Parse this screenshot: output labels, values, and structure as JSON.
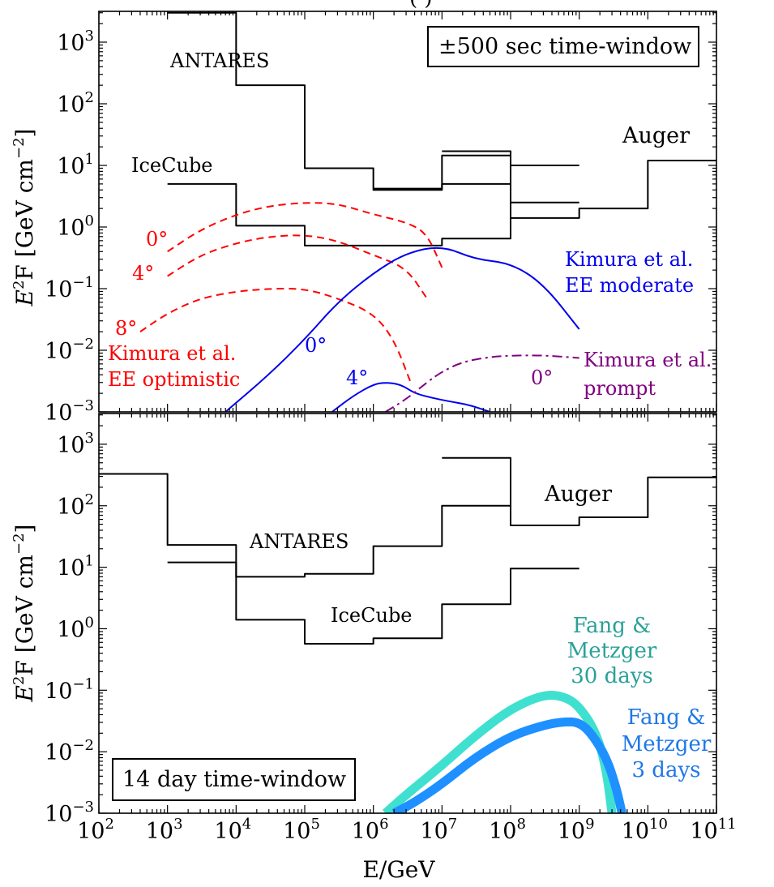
{
  "chart_data": [
    {
      "type": "line",
      "panel": "top",
      "ylabel_main": "E",
      "ylabel_sup": "2",
      "ylabel_rest": "F  [GeV cm",
      "ylabel_unit_sup": "−2",
      "ylabel_close": "]",
      "xscale": "log",
      "yscale": "log",
      "xlim": [
        100,
        100000000000
      ],
      "ylim": [
        0.001,
        3000
      ],
      "box_label": "±500 sec time-window",
      "series": [
        {
          "name": "ANTARES",
          "color": "#000000",
          "style": "step",
          "x": [
            1000,
            10000,
            100000,
            1000000,
            10000000,
            100000000
          ],
          "y": [
            3000,
            200,
            9,
            4,
            5,
            15
          ],
          "x_end": 100000000
        },
        {
          "name": "IceCube",
          "color": "#000000",
          "style": "step",
          "x": [
            1000,
            10000,
            100000,
            1000000,
            10000000,
            100000000
          ],
          "y": [
            5,
            1.05,
            0.5,
            0.5,
            0.65,
            2.5
          ],
          "x_end": 1000000000
        },
        {
          "name": "IceCube upper",
          "color": "#000000",
          "style": "step",
          "x": [
            1000000,
            10000000
          ],
          "y": [
            4.2,
            14.5
          ],
          "x_end": 100000000
        },
        {
          "name": "Auger",
          "color": "#000000",
          "style": "step",
          "x": [
            10000000,
            100000000,
            1000000000,
            10000000000
          ],
          "y": [
            17,
            1.4,
            2,
            12
          ],
          "x_end": 100000000000
        },
        {
          "name": "Auger cap",
          "color": "#000000",
          "style": "step",
          "x": [
            100000000
          ],
          "y": [
            10
          ],
          "x_end": 1000000000
        },
        {
          "name": "Kimura et al. EE optimistic 0°",
          "color": "#ff0000",
          "style": "dashed",
          "x": [
            1000,
            3000,
            10000,
            30000,
            100000,
            300000,
            1000000,
            3000000,
            6000000,
            10000000
          ],
          "y": [
            0.4,
            0.9,
            1.6,
            2.2,
            2.5,
            2.4,
            1.6,
            1.2,
            0.8,
            0.22
          ]
        },
        {
          "name": "Kimura et al. EE optimistic 4°",
          "color": "#ff0000",
          "style": "dashed",
          "x": [
            1000,
            3000,
            10000,
            30000,
            100000,
            300000,
            1000000,
            3000000,
            6000000
          ],
          "y": [
            0.16,
            0.35,
            0.55,
            0.7,
            0.75,
            0.6,
            0.35,
            0.22,
            0.07
          ]
        },
        {
          "name": "Kimura et al. EE optimistic 8°",
          "color": "#ff0000",
          "style": "dashed",
          "x": [
            400,
            1000,
            3000,
            10000,
            30000,
            100000,
            300000,
            1000000,
            2000000,
            3500000
          ],
          "y": [
            0.02,
            0.04,
            0.07,
            0.09,
            0.1,
            0.1,
            0.07,
            0.04,
            0.015,
            0.003
          ]
        },
        {
          "name": "Kimura et al. EE moderate 0°",
          "color": "#0000ee",
          "style": "solid",
          "x": [
            7000,
            30000,
            100000,
            300000,
            1000000,
            3000000,
            10000000,
            30000000,
            100000000,
            300000000,
            1000000000
          ],
          "y": [
            0.001,
            0.004,
            0.015,
            0.06,
            0.18,
            0.38,
            0.5,
            0.3,
            0.26,
            0.12,
            0.022
          ]
        },
        {
          "name": "Kimura et al. EE moderate 4°",
          "color": "#0000ee",
          "style": "solid",
          "x": [
            250000,
            500000,
            1000000,
            1500000,
            2500000,
            4000000,
            7000000,
            12000000,
            25000000,
            50000000
          ],
          "y": [
            0.001,
            0.0018,
            0.0028,
            0.003,
            0.0028,
            0.002,
            0.0017,
            0.0015,
            0.0013,
            0.001
          ]
        },
        {
          "name": "Kimura et al. prompt 0°",
          "color": "#800080",
          "style": "dashdot",
          "x": [
            1500000,
            3000000,
            6000000,
            10000000,
            20000000,
            50000000,
            100000000,
            300000000,
            1000000000
          ],
          "y": [
            0.001,
            0.0016,
            0.003,
            0.0045,
            0.0065,
            0.0078,
            0.0082,
            0.0083,
            0.0075
          ]
        }
      ],
      "labels": {
        "antares": "ANTARES",
        "icecube": "IceCube",
        "auger": "Auger",
        "red_0": "0°",
        "red_4": "4°",
        "red_8": "8°",
        "red_name1": "Kimura et al.",
        "red_name2": "EE optimistic",
        "blue_name1": "Kimura et al.",
        "blue_name2": "EE moderate",
        "blue_0": "0°",
        "blue_4": "4°",
        "purple_name1": "Kimura et al.",
        "purple_name2": "prompt",
        "purple_0": "0°"
      }
    },
    {
      "type": "line",
      "panel": "bottom",
      "ylabel_main": "E",
      "ylabel_sup": "2",
      "ylabel_rest": "F  [GeV cm",
      "ylabel_unit_sup": "−2",
      "ylabel_close": "]",
      "xlabel": "E/GeV",
      "xscale": "log",
      "yscale": "log",
      "xlim": [
        100,
        100000000000
      ],
      "ylim": [
        0.001,
        3000
      ],
      "box_label": "14 day time-window",
      "series": [
        {
          "name": "ANTARES",
          "color": "#000000",
          "style": "step",
          "x": [
            100,
            1000,
            10000,
            100000,
            1000000,
            10000000
          ],
          "y": [
            330,
            23,
            7,
            7.8,
            22,
            100
          ],
          "x_end": 100000000
        },
        {
          "name": "IceCube",
          "color": "#000000",
          "style": "step",
          "x": [
            1000,
            10000,
            100000,
            1000000,
            10000000,
            100000000
          ],
          "y": [
            12,
            1.4,
            0.57,
            0.7,
            2.5,
            9.5
          ],
          "x_end": 1000000000
        },
        {
          "name": "Auger",
          "color": "#000000",
          "style": "step",
          "x": [
            10000000,
            100000000,
            1000000000,
            10000000000
          ],
          "y": [
            600,
            48,
            65,
            290
          ],
          "x_end": 100000000000
        },
        {
          "name": "Fang & Metzger 30 days",
          "color": "#40e0d0",
          "style": "thick",
          "x": [
            1500000,
            3000000,
            10000000,
            30000000,
            100000000,
            300000000,
            600000000,
            1000000000,
            1800000000,
            2500000000,
            3000000000
          ],
          "y": [
            0.001,
            0.002,
            0.006,
            0.018,
            0.05,
            0.085,
            0.08,
            0.055,
            0.02,
            0.005,
            0.001
          ]
        },
        {
          "name": "Fang & Metzger 3 days",
          "color": "#1e90ff",
          "style": "thick",
          "x": [
            2000000,
            4000000,
            10000000,
            30000000,
            100000000,
            300000000,
            600000000,
            1000000000,
            1500000000,
            2500000000,
            3500000000,
            4200000000
          ],
          "y": [
            0.001,
            0.0015,
            0.003,
            0.008,
            0.018,
            0.027,
            0.031,
            0.03,
            0.02,
            0.008,
            0.0025,
            0.001
          ]
        }
      ],
      "labels": {
        "antares": "ANTARES",
        "icecube": "IceCube",
        "auger": "Auger",
        "fm30_1": "Fang &",
        "fm30_2": "Metzger",
        "fm30_3": "30 days",
        "fm3_1": "Fang &",
        "fm3_2": "Metzger",
        "fm3_3": "3 days"
      }
    }
  ],
  "header_fragment": "(                        )",
  "x_tick_exponents": [
    "2",
    "3",
    "4",
    "5",
    "6",
    "7",
    "8",
    "9",
    "10",
    "11"
  ],
  "y_tick_exponents": [
    "3",
    "2",
    "1",
    "0",
    "−1",
    "−2",
    "−3"
  ]
}
